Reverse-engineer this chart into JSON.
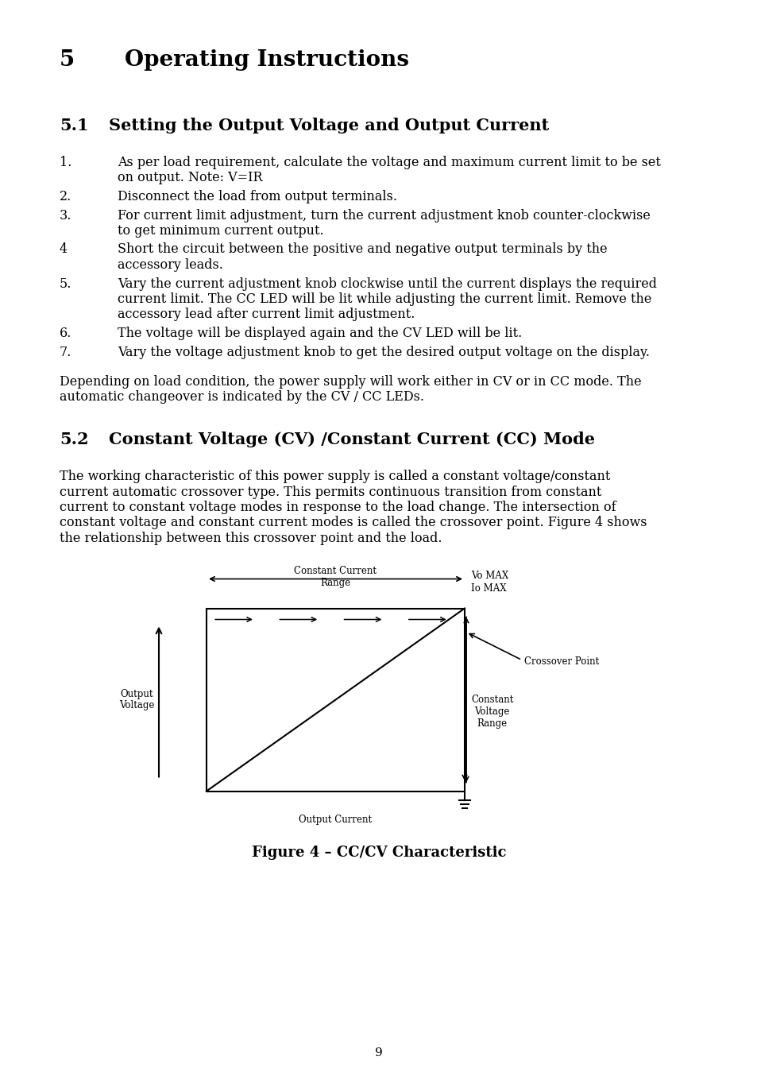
{
  "title_num": "5",
  "title_text": "Operating Instructions",
  "section_num": "5.1",
  "section_title": "Setting the Output Voltage and Output Current",
  "section2_num": "5.2",
  "section2_title": "Constant Voltage (CV) /Constant Current (CC) Mode",
  "paragraph1": "Depending on load condition, the power supply will work either in CV or in CC mode. The automatic changeover is indicated by the CV / CC LEDs.",
  "paragraph2_lines": [
    "The working characteristic of this power supply is called a constant voltage/constant",
    "current automatic crossover type. This permits continuous transition from constant",
    "current to constant voltage modes in response to the load change. The intersection of",
    "constant voltage and constant current modes is called the crossover point. Figure 4 shows",
    "the relationship between this crossover point and the load."
  ],
  "list_items": [
    {
      "num": "1.",
      "lines": [
        "As per load requirement, calculate the voltage and maximum current limit to be set",
        "on output. Note: V=IR"
      ]
    },
    {
      "num": "2.",
      "lines": [
        "Disconnect the load from output terminals."
      ]
    },
    {
      "num": "3.",
      "lines": [
        "For current limit adjustment, turn the current adjustment knob counter-clockwise",
        "to get minimum current output."
      ]
    },
    {
      "num": "4",
      "lines": [
        "Short the circuit between the positive and negative output terminals by the",
        "accessory leads."
      ]
    },
    {
      "num": "5.",
      "lines": [
        "Vary the current adjustment knob clockwise until the current displays the required",
        "current limit. The CC LED will be lit while adjusting the current limit. Remove the",
        "accessory lead after current limit adjustment."
      ]
    },
    {
      "num": "6.",
      "lines": [
        "The voltage will be displayed again and the CV LED will be lit."
      ]
    },
    {
      "num": "7.",
      "lines": [
        "Vary the voltage adjustment knob to get the desired output voltage on the display."
      ]
    }
  ],
  "figure_caption": "Figure 4 – CC/CV Characteristic",
  "page_num": "9",
  "bg_color": "#ffffff",
  "text_color": "#000000"
}
